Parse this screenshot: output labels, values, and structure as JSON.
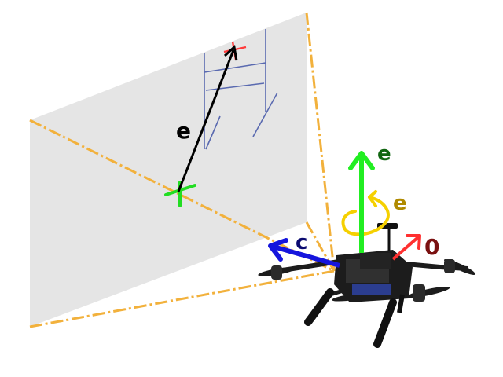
{
  "labels": {
    "error_vector": "e",
    "vertical_axis": "e",
    "yaw_axis": "e",
    "camera_axis": "c",
    "forward_axis": "0"
  },
  "colors": {
    "image_plane": "#e5e5e5",
    "frustum": "#f2b13c",
    "goal_frame": "#5a6ab0",
    "target_marker": "#ff3b3b",
    "current_marker": "#22dd22",
    "error_vector": "#000000",
    "vertical_axis": "#22ee22",
    "vertical_label": "#116611",
    "yaw_arrow": "#f5d000",
    "yaw_label": "#b08a00",
    "camera_axis": "#1515dd",
    "camera_label": "#0a0a70",
    "forward_axis": "#ff3030",
    "forward_label": "#7a1010",
    "drone_body": "#1c1c1c",
    "drone_accent": "#2b3d8f"
  },
  "icons": [
    "image-plane",
    "camera-frustum",
    "goal-frame",
    "target-marker",
    "current-marker",
    "drone"
  ]
}
